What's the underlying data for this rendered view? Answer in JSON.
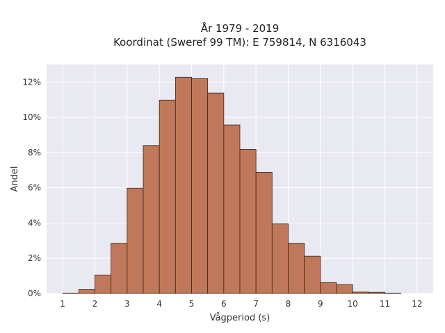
{
  "chart_data": {
    "type": "bar",
    "title": "År 1979 - 2019",
    "subtitle": "Koordinat (Sweref 99 TM): E 759814, N 6316043",
    "xlabel": "Vågperiod (s)",
    "ylabel": "Andel",
    "xlim": [
      0.5,
      12.5
    ],
    "ylim": [
      0,
      0.13
    ],
    "x_ticks": [
      1,
      2,
      3,
      4,
      5,
      6,
      7,
      8,
      9,
      10,
      11,
      12
    ],
    "y_ticks": [
      0,
      0.02,
      0.04,
      0.06,
      0.08,
      0.1,
      0.12
    ],
    "y_tick_labels": [
      "0%",
      "2%",
      "4%",
      "6%",
      "8%",
      "10%",
      "12%"
    ],
    "bin_width": 0.5,
    "bins": [
      {
        "start": 1.0,
        "value": 0.0002
      },
      {
        "start": 1.5,
        "value": 0.0022
      },
      {
        "start": 2.0,
        "value": 0.0105
      },
      {
        "start": 2.5,
        "value": 0.0285
      },
      {
        "start": 3.0,
        "value": 0.0598
      },
      {
        "start": 3.5,
        "value": 0.084
      },
      {
        "start": 4.0,
        "value": 0.1098
      },
      {
        "start": 4.5,
        "value": 0.1228
      },
      {
        "start": 5.0,
        "value": 0.122
      },
      {
        "start": 5.5,
        "value": 0.1138
      },
      {
        "start": 6.0,
        "value": 0.0957
      },
      {
        "start": 6.5,
        "value": 0.0818
      },
      {
        "start": 7.0,
        "value": 0.0688
      },
      {
        "start": 7.5,
        "value": 0.0395
      },
      {
        "start": 8.0,
        "value": 0.0285
      },
      {
        "start": 8.5,
        "value": 0.0212
      },
      {
        "start": 9.0,
        "value": 0.0062
      },
      {
        "start": 9.5,
        "value": 0.005
      },
      {
        "start": 10.0,
        "value": 0.0008
      },
      {
        "start": 10.5,
        "value": 0.0007
      },
      {
        "start": 11.0,
        "value": 0.0002
      }
    ],
    "grid": true,
    "colors": {
      "bar_fill": "#c0785a",
      "bar_stroke": "#3d2418",
      "plot_bg": "#e9e9f2",
      "grid": "#ffffff"
    }
  }
}
